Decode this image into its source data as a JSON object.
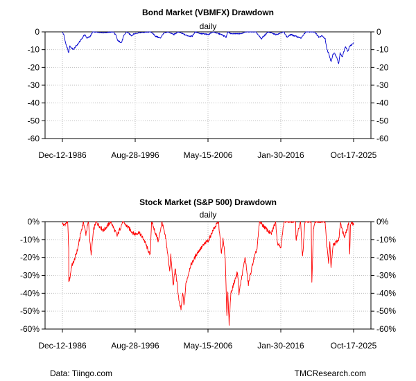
{
  "chart_data": [
    {
      "type": "line",
      "title": "Bond Market (VBMFX) Drawdown",
      "subtitle": "daily",
      "color": "#0000CD",
      "x_tick_labels": [
        "Dec-12-1986",
        "Aug-28-1996",
        "May-15-2006",
        "Jan-30-2016",
        "Oct-17-2025"
      ],
      "y_ticks": [
        "0",
        "-10",
        "-20",
        "-30",
        "-40",
        "-50",
        "-60"
      ],
      "ylim": [
        -60,
        0
      ],
      "xlim": [
        "1986-12-12",
        "2025-10-17"
      ],
      "grid": true,
      "series": [
        {
          "points": [
            [
              "1986-12-12",
              0
            ],
            [
              "1987-03-01",
              -2
            ],
            [
              "1987-06-01",
              -7
            ],
            [
              "1987-08-01",
              -9
            ],
            [
              "1987-10-15",
              -12
            ],
            [
              "1987-12-01",
              -8
            ],
            [
              "1988-03-01",
              -9
            ],
            [
              "1988-06-01",
              -10
            ],
            [
              "1988-10-01",
              -8
            ],
            [
              "1989-01-01",
              -7
            ],
            [
              "1989-05-01",
              -5
            ],
            [
              "1989-09-01",
              -3
            ],
            [
              "1989-12-01",
              -1.5
            ],
            [
              "1990-04-01",
              -3.5
            ],
            [
              "1990-09-01",
              -2.5
            ],
            [
              "1991-01-01",
              0
            ],
            [
              "1992-06-01",
              -0.5
            ],
            [
              "1993-10-01",
              0
            ],
            [
              "1994-02-01",
              -2
            ],
            [
              "1994-05-01",
              -5
            ],
            [
              "1994-11-01",
              -6
            ],
            [
              "1995-03-01",
              -2
            ],
            [
              "1995-07-01",
              0
            ],
            [
              "1996-03-01",
              -2
            ],
            [
              "1996-08-01",
              -1
            ],
            [
              "1997-03-01",
              -0.5
            ],
            [
              "1998-10-01",
              0
            ],
            [
              "1999-06-01",
              -2.5
            ],
            [
              "2000-01-01",
              -3.5
            ],
            [
              "2000-06-01",
              -1
            ],
            [
              "2001-01-01",
              0
            ],
            [
              "2001-11-01",
              -1.5
            ],
            [
              "2002-06-01",
              0
            ],
            [
              "2003-07-01",
              -2
            ],
            [
              "2004-04-01",
              -2.5
            ],
            [
              "2004-09-01",
              0
            ],
            [
              "2005-06-01",
              -1
            ],
            [
              "2006-06-01",
              -1.5
            ],
            [
              "2007-01-01",
              0
            ],
            [
              "2008-03-01",
              -1.5
            ],
            [
              "2008-10-15",
              -3
            ],
            [
              "2009-01-01",
              0
            ],
            [
              "2009-06-01",
              -1
            ],
            [
              "2010-11-01",
              -1
            ],
            [
              "2011-06-01",
              0
            ],
            [
              "2012-10-01",
              0
            ],
            [
              "2013-06-25",
              -4
            ],
            [
              "2013-09-01",
              -3
            ],
            [
              "2014-06-01",
              0
            ],
            [
              "2015-06-01",
              -1.5
            ],
            [
              "2016-07-01",
              0
            ],
            [
              "2016-12-01",
              -3
            ],
            [
              "2017-06-01",
              -1.5
            ],
            [
              "2018-02-01",
              -2.5
            ],
            [
              "2018-10-25",
              -3.5
            ],
            [
              "2019-06-01",
              0
            ],
            [
              "2020-08-01",
              0
            ],
            [
              "2021-03-01",
              -3
            ],
            [
              "2021-08-01",
              -2
            ],
            [
              "2022-01-01",
              -4
            ],
            [
              "2022-04-01",
              -10
            ],
            [
              "2022-06-15",
              -12
            ],
            [
              "2022-10-20",
              -17
            ],
            [
              "2023-01-01",
              -13
            ],
            [
              "2023-04-01",
              -12
            ],
            [
              "2023-07-01",
              -14
            ],
            [
              "2023-10-20",
              -18
            ],
            [
              "2023-12-28",
              -12
            ],
            [
              "2024-04-15",
              -14
            ],
            [
              "2024-09-15",
              -8
            ],
            [
              "2025-01-10",
              -11
            ],
            [
              "2025-04-01",
              -8
            ],
            [
              "2025-07-01",
              -7.5
            ],
            [
              "2025-10-17",
              -6
            ]
          ]
        }
      ]
    },
    {
      "type": "line",
      "title": "Stock Market (S&P 500) Drawdown",
      "subtitle": "daily",
      "color": "#FF0000",
      "x_tick_labels": [
        "Dec-12-1986",
        "Aug-28-1996",
        "May-15-2006",
        "Jan-30-2016",
        "Oct-17-2025"
      ],
      "y_ticks": [
        "0%",
        "-10%",
        "-20%",
        "-30%",
        "-40%",
        "-50%",
        "-60%"
      ],
      "ylim": [
        -60,
        0
      ],
      "xlim": [
        "1986-12-12",
        "2025-10-17"
      ],
      "grid": true,
      "series": [
        {
          "points": [
            [
              "1986-12-12",
              -1
            ],
            [
              "1987-03-01",
              -2
            ],
            [
              "1987-08-25",
              0
            ],
            [
              "1987-10-16",
              -15
            ],
            [
              "1987-10-19",
              -33
            ],
            [
              "1987-12-04",
              -32
            ],
            [
              "1988-03-01",
              -25
            ],
            [
              "1988-07-01",
              -22
            ],
            [
              "1989-01-01",
              -15
            ],
            [
              "1989-06-01",
              -6
            ],
            [
              "1989-10-01",
              0
            ],
            [
              "1990-01-30",
              -7
            ],
            [
              "1990-06-01",
              0
            ],
            [
              "1990-10-11",
              -19
            ],
            [
              "1991-02-01",
              -5
            ],
            [
              "1991-06-01",
              0
            ],
            [
              "1992-06-01",
              -5
            ],
            [
              "1993-06-01",
              0
            ],
            [
              "1994-04-01",
              -8
            ],
            [
              "1995-01-01",
              0
            ],
            [
              "1996-07-20",
              -7
            ],
            [
              "1997-03-01",
              -6
            ],
            [
              "1997-10-27",
              -10
            ],
            [
              "1998-08-31",
              -19
            ],
            [
              "1998-11-01",
              0
            ],
            [
              "1999-10-01",
              -11
            ],
            [
              "2000-03-24",
              0
            ],
            [
              "2000-10-01",
              -10
            ],
            [
              "2001-04-04",
              -27
            ],
            [
              "2001-06-01",
              -19
            ],
            [
              "2001-09-21",
              -36
            ],
            [
              "2002-01-01",
              -26
            ],
            [
              "2002-07-23",
              -46
            ],
            [
              "2002-10-09",
              -49
            ],
            [
              "2003-01-01",
              -40
            ],
            [
              "2003-03-11",
              -47
            ],
            [
              "2003-06-01",
              -35
            ],
            [
              "2004-01-01",
              -25
            ],
            [
              "2005-01-01",
              -17
            ],
            [
              "2006-01-01",
              -12
            ],
            [
              "2006-07-01",
              -10
            ],
            [
              "2007-01-01",
              -5
            ],
            [
              "2007-10-09",
              0
            ],
            [
              "2008-03-01",
              -18
            ],
            [
              "2008-05-15",
              -10
            ],
            [
              "2008-09-01",
              -20
            ],
            [
              "2008-11-20",
              -52
            ],
            [
              "2009-01-06",
              -40
            ],
            [
              "2009-03-09",
              -57
            ],
            [
              "2009-06-01",
              -40
            ],
            [
              "2010-04-23",
              -28
            ],
            [
              "2010-07-01",
              -40
            ],
            [
              "2011-04-29",
              -20
            ],
            [
              "2011-10-03",
              -35
            ],
            [
              "2012-06-01",
              -22
            ],
            [
              "2012-12-01",
              -15
            ],
            [
              "2013-03-28",
              0
            ],
            [
              "2014-10-15",
              -7
            ],
            [
              "2015-05-21",
              0
            ],
            [
              "2015-08-25",
              -12
            ],
            [
              "2016-02-11",
              -14
            ],
            [
              "2016-07-01",
              0
            ],
            [
              "2018-01-26",
              0
            ],
            [
              "2018-02-08",
              -10
            ],
            [
              "2018-09-20",
              0
            ],
            [
              "2018-12-24",
              -20
            ],
            [
              "2019-04-25",
              0
            ],
            [
              "2020-02-19",
              0
            ],
            [
              "2020-03-23",
              -34
            ],
            [
              "2020-06-08",
              -4
            ],
            [
              "2020-08-18",
              0
            ],
            [
              "2021-12-31",
              0
            ],
            [
              "2022-03-08",
              -12
            ],
            [
              "2022-06-16",
              -23
            ],
            [
              "2022-08-16",
              -12
            ],
            [
              "2022-10-12",
              -25
            ],
            [
              "2023-02-01",
              -13
            ],
            [
              "2023-10-27",
              -10
            ],
            [
              "2024-01-19",
              0
            ],
            [
              "2024-04-19",
              -5
            ],
            [
              "2024-08-05",
              -8
            ],
            [
              "2024-12-31",
              -3
            ],
            [
              "2025-02-19",
              0
            ],
            [
              "2025-04-08",
              -19
            ],
            [
              "2025-05-15",
              -3
            ],
            [
              "2025-07-01",
              0
            ],
            [
              "2025-10-17",
              -2
            ]
          ]
        }
      ]
    }
  ],
  "footer": {
    "source": "Data: Tiingo.com",
    "brand": "TMCResearch.com"
  }
}
